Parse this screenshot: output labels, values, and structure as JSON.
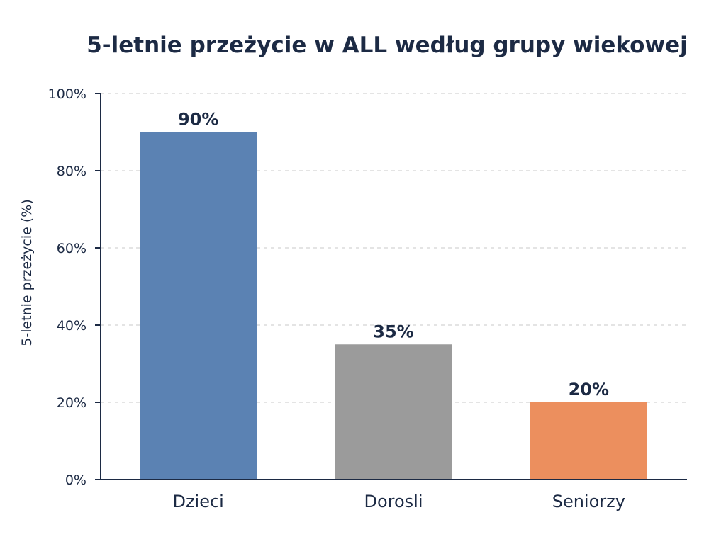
{
  "chart_data": {
    "type": "bar",
    "title": "5-letnie przeżycie w ALL według grupy wiekowej",
    "xlabel": "",
    "ylabel": "5-letnie przeżycie (%)",
    "categories": [
      "Dzieci",
      "Dorosli",
      "Seniorzy"
    ],
    "values": [
      90,
      35,
      20
    ],
    "value_labels": [
      "90%",
      "35%",
      "20%"
    ],
    "colors": [
      "#5b82b3",
      "#9b9b9b",
      "#ec8f5e"
    ],
    "ylim": [
      0,
      100
    ],
    "yticks": [
      0,
      20,
      40,
      60,
      80,
      100
    ],
    "ytick_labels": [
      "0%",
      "20%",
      "40%",
      "60%",
      "80%",
      "100%"
    ],
    "grid": true,
    "legend": false
  }
}
